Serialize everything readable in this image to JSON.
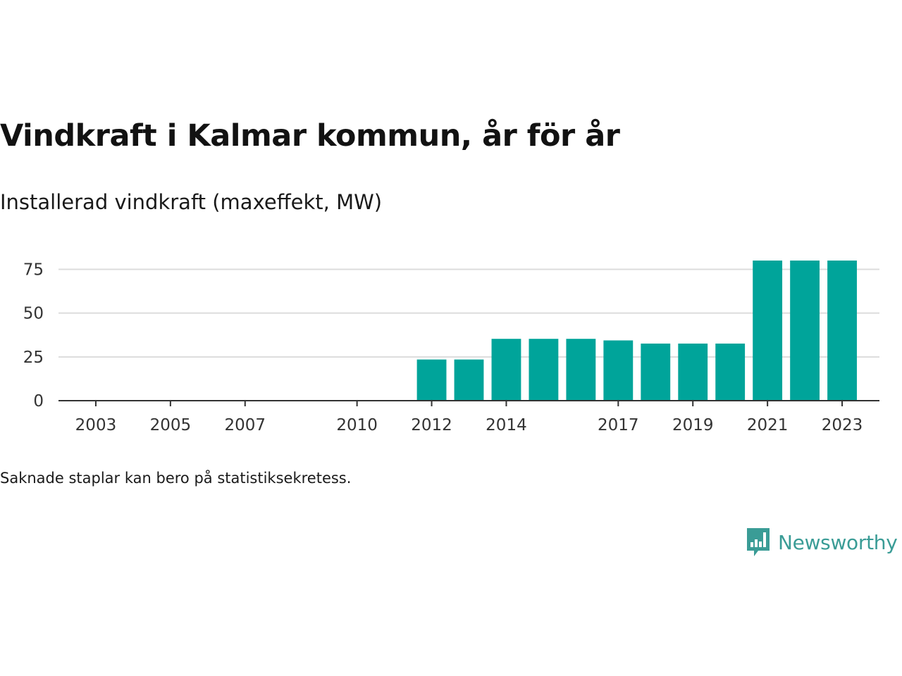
{
  "title": "Vindkraft i Kalmar kommun, år för år",
  "subtitle": "Installerad vindkraft (maxeffekt, MW)",
  "note": "Saknade staplar kan bero på statistiksekretess.",
  "logo": {
    "text": "Newsworthy",
    "icon": "newsworthy-bar-chart-icon"
  },
  "colors": {
    "bar": "#00a49a",
    "grid": "#dcdcdc",
    "axis": "#333333",
    "brand": "#3a9c96"
  },
  "chart_data": {
    "type": "bar",
    "x": [
      2012,
      2013,
      2014,
      2015,
      2016,
      2017,
      2018,
      2019,
      2020,
      2021,
      2022,
      2023
    ],
    "values": [
      23.5,
      23.5,
      35.3,
      35.3,
      35.3,
      34.4,
      32.6,
      32.6,
      32.6,
      80,
      80,
      80
    ],
    "xlim": [
      2002,
      2024
    ],
    "x_ticks": [
      "2003",
      "2005",
      "2007",
      "2010",
      "2012",
      "2014",
      "2017",
      "2019",
      "2021",
      "2023"
    ],
    "y_ticks": [
      "0",
      "25",
      "50",
      "75"
    ],
    "ylim": [
      0,
      80
    ],
    "grid": true,
    "legend": "none",
    "xlabel": "",
    "ylabel": ""
  }
}
